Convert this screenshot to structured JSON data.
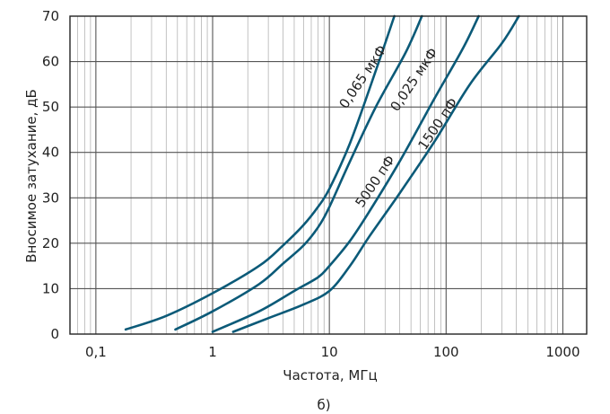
{
  "chart_data": {
    "type": "line",
    "xscale": "log",
    "xlim": [
      0.06,
      1600
    ],
    "ylim": [
      0,
      70
    ],
    "grid": true,
    "xlabel": "Частота, МГц",
    "ylabel": "Вносимое затухание, дБ",
    "caption": "б)",
    "x_ticks": [
      {
        "value": 0.1,
        "label": "0,1"
      },
      {
        "value": 1,
        "label": "1"
      },
      {
        "value": 10,
        "label": "10"
      },
      {
        "value": 100,
        "label": "100"
      },
      {
        "value": 1000,
        "label": "1000"
      }
    ],
    "y_ticks": [
      0,
      10,
      20,
      30,
      40,
      50,
      60,
      70
    ],
    "line_color": "#0b5a78",
    "series": [
      {
        "name": "0,065 мкФ",
        "x": [
          0.18,
          0.4,
          1,
          2.5,
          4,
          6,
          8,
          10,
          15,
          25,
          36
        ],
        "y": [
          1,
          4,
          9,
          15,
          19.5,
          24,
          28,
          32,
          42,
          58,
          70
        ]
      },
      {
        "name": "0,025 мкФ",
        "x": [
          0.48,
          1,
          2.5,
          4,
          6,
          8,
          10,
          15,
          25,
          45,
          62
        ],
        "y": [
          1,
          5,
          11,
          15.5,
          19.5,
          23.5,
          28,
          38,
          50,
          62,
          70
        ]
      },
      {
        "name": "5000 пФ",
        "x": [
          1,
          2.5,
          5,
          8,
          10,
          15,
          22,
          40,
          80,
          140,
          190
        ],
        "y": [
          0.5,
          5,
          9.5,
          12.5,
          15,
          20.5,
          27,
          38,
          52,
          63,
          70
        ]
      },
      {
        "name": "1500 пФ",
        "x": [
          1.5,
          3,
          6,
          10,
          15,
          22,
          40,
          80,
          160,
          300,
          420
        ],
        "y": [
          0.5,
          3.5,
          6.5,
          9.5,
          15,
          21.5,
          31,
          42.5,
          55,
          64,
          70
        ]
      }
    ]
  }
}
